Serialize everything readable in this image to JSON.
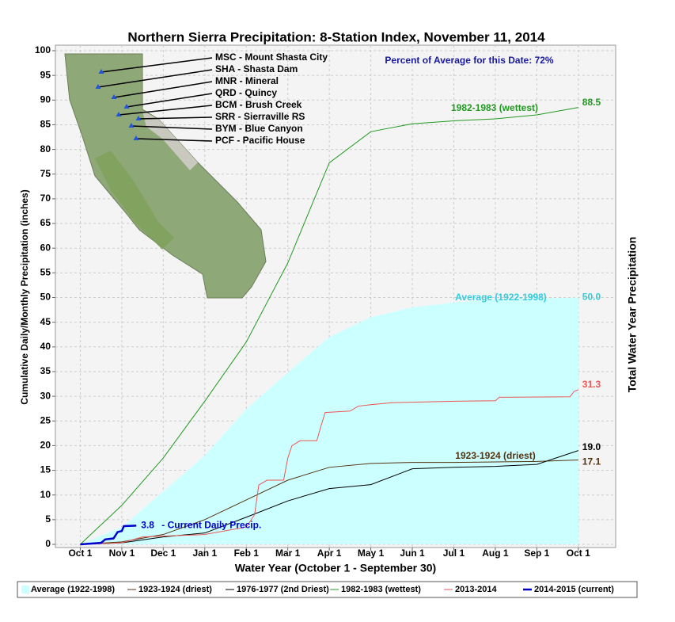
{
  "chart_data": {
    "type": "line",
    "title": "Northern Sierra Precipitation: 8-Station Index, November 11, 2014",
    "x_label": "Water Year (October 1 - September 30)",
    "y_label": "Cumulative Daily/Monthly Precipitation (inches)",
    "y2_label": "Total Water Year Precipitation",
    "xlim": [
      -0.6,
      12.9
    ],
    "ylim": [
      0,
      100
    ],
    "xticks": [
      {
        "value": 0,
        "label": "Oct 1"
      },
      {
        "value": 1,
        "label": "Nov 1"
      },
      {
        "value": 2,
        "label": "Dec 1"
      },
      {
        "value": 3,
        "label": "Jan 1"
      },
      {
        "value": 4,
        "label": "Feb 1"
      },
      {
        "value": 5,
        "label": "Mar 1"
      },
      {
        "value": 6,
        "label": "Apr 1"
      },
      {
        "value": 7,
        "label": "May 1"
      },
      {
        "value": 8,
        "label": "Jun 1"
      },
      {
        "value": 9,
        "label": "Jul 1"
      },
      {
        "value": 10,
        "label": "Aug 1"
      },
      {
        "value": 11,
        "label": "Sep 1"
      },
      {
        "value": 12,
        "label": "Oct 1"
      }
    ],
    "yticks": [
      0,
      5,
      10,
      15,
      20,
      25,
      30,
      35,
      40,
      45,
      50,
      55,
      60,
      65,
      70,
      75,
      80,
      85,
      90,
      95,
      100
    ],
    "grid": true,
    "annotations": {
      "percent": "Percent of Average for this Date: 72%",
      "current": "-  Current Daily Precip."
    },
    "stations": [
      "MSC - Mount Shasta City",
      "SHA - Shasta Dam",
      "MNR - Mineral",
      "QRD - Quincy",
      "BCM - Brush Creek",
      "SRR - Sierraville RS",
      "BYM - Blue Canyon",
      "PCF - Pacific House"
    ],
    "series": [
      {
        "name": "Average (1922-1998)",
        "style": "area",
        "color": "#ccffff",
        "label_color": "#33ccdd",
        "x": [
          0,
          1,
          2,
          3,
          4,
          5,
          6,
          7,
          8,
          9,
          10,
          11,
          12
        ],
        "values": [
          0,
          3.5,
          10.7,
          18,
          27.4,
          34.8,
          42,
          46,
          48,
          49,
          49.6,
          49.8,
          50
        ],
        "value_labels": [
          null,
          null,
          null,
          null,
          null,
          null,
          null,
          null,
          null,
          null,
          null,
          null,
          "50.0"
        ]
      },
      {
        "name": "1923-1924 (driest)",
        "color": "#553311",
        "label_color": "#553311",
        "x": [
          0,
          1,
          2,
          3,
          4,
          5,
          6,
          7,
          8,
          9,
          10,
          11,
          12
        ],
        "values": [
          0,
          0.5,
          2,
          5,
          9,
          13,
          15.6,
          16.4,
          16.6,
          16.6,
          16.7,
          16.8,
          17.1
        ],
        "value_labels": [
          null,
          null,
          null,
          null,
          null,
          null,
          null,
          null,
          null,
          null,
          null,
          null,
          "17.1"
        ]
      },
      {
        "name": "1976-1977 (2nd Driest)",
        "color": "#000000",
        "x": [
          0,
          1,
          2,
          3,
          4,
          5,
          6,
          7,
          8,
          9,
          10,
          11,
          12
        ],
        "values": [
          0,
          0.3,
          1.5,
          2.3,
          5.5,
          8.8,
          11.3,
          12.1,
          15.3,
          15.6,
          15.8,
          16.2,
          19
        ],
        "value_labels": [
          null,
          null,
          null,
          null,
          null,
          null,
          null,
          null,
          null,
          null,
          null,
          null,
          "19.0"
        ]
      },
      {
        "name": "1982-1983 (wettest)",
        "color": "#229922",
        "label_color": "#229922",
        "x": [
          0,
          1,
          2,
          3,
          4,
          5,
          6,
          7,
          8,
          9,
          10,
          11,
          12
        ],
        "values": [
          0,
          7.9,
          17.5,
          29,
          41,
          57,
          77.3,
          83.6,
          85.2,
          85.8,
          86.2,
          87,
          88.5
        ]
      },
      {
        "name": "2013-2014",
        "color": "#ee5555",
        "label_color": "#ee5555",
        "x": [
          0,
          1,
          1.5,
          3,
          4,
          4.2,
          4.3,
          4.5,
          4.9,
          5,
          5.1,
          5.3,
          5.7,
          5.8,
          5.9,
          6.5,
          6.7,
          7,
          7.5,
          8,
          9,
          10,
          10.1,
          11.8,
          11.9,
          12
        ],
        "values": [
          0,
          0.3,
          1.5,
          2,
          3.5,
          6,
          12,
          13,
          13,
          17.5,
          20,
          21,
          21,
          24,
          26.7,
          27,
          28,
          28.3,
          28.7,
          28.8,
          29,
          29.1,
          29.8,
          29.9,
          31,
          31.3
        ]
      },
      {
        "name": "2014-2015 (current)",
        "color": "#0000cc",
        "label_color": "#0000cc",
        "width": 2.5,
        "x": [
          0,
          0.5,
          0.6,
          0.8,
          0.9,
          1,
          1.05,
          1.35
        ],
        "values": [
          0,
          0.3,
          1,
          1.2,
          2.5,
          2.7,
          3.7,
          3.8
        ],
        "value_labels": [
          null,
          null,
          null,
          null,
          null,
          null,
          null,
          "3.8"
        ]
      }
    ]
  }
}
